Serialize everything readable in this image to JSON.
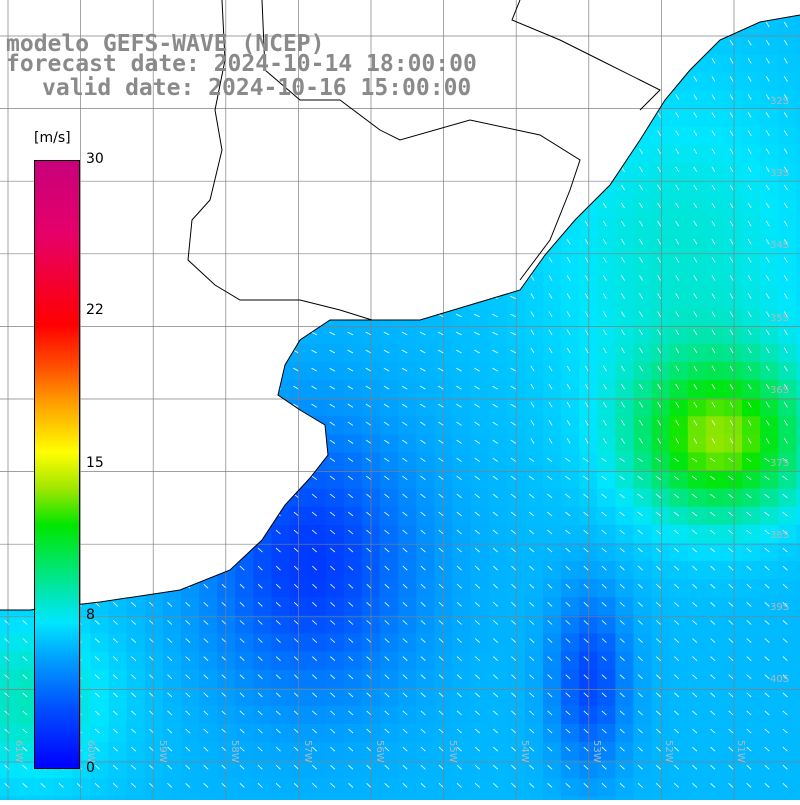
{
  "title": {
    "line1": "modelo GEFS-WAVE (NCEP)",
    "line2": "forecast date: 2024-10-14 18:00:00",
    "line3": "valid date: 2024-10-16 15:00:00"
  },
  "colorbar": {
    "unit": "[m/s]",
    "ticks": [
      "30",
      "22",
      "15",
      "8",
      "0"
    ],
    "range": [
      0,
      30
    ]
  },
  "axes": {
    "lat_labels": [
      "32S",
      "33S",
      "34S",
      "35S",
      "36S",
      "37S",
      "38S",
      "39S",
      "40S"
    ],
    "lon_labels": [
      "61W",
      "60W",
      "59W",
      "58W",
      "57W",
      "56W",
      "55W",
      "54W",
      "53W",
      "52W",
      "51W"
    ]
  },
  "colors": {
    "land": "#ffffff",
    "coast": "#000000",
    "grid": "#7f7f7f",
    "arrow": "#ffffff"
  }
}
